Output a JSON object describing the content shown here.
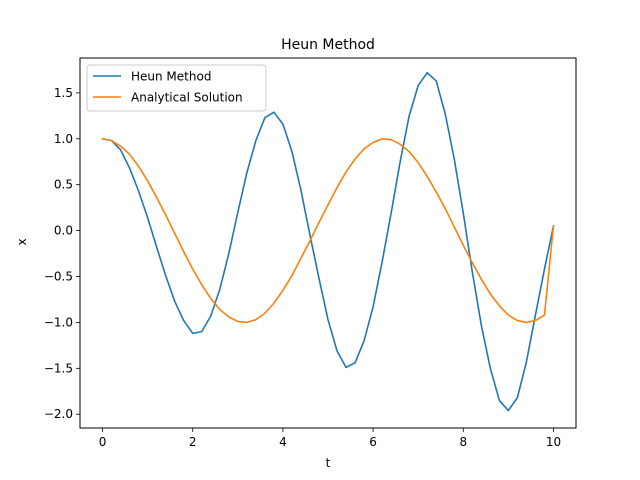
{
  "chart_data": {
    "type": "line",
    "title": "Heun Method",
    "xlabel": "t",
    "ylabel": "x",
    "xlim": [
      -0.5,
      10.5
    ],
    "ylim": [
      -2.15,
      1.88
    ],
    "xticks": [
      0,
      2,
      4,
      6,
      8,
      10
    ],
    "xtick_labels": [
      "0",
      "2",
      "4",
      "6",
      "8",
      "10"
    ],
    "yticks": [
      -2.0,
      -1.5,
      -1.0,
      -0.5,
      0.0,
      0.5,
      1.0,
      1.5
    ],
    "ytick_labels": [
      "−2.0",
      "−1.5",
      "−1.0",
      "−0.5",
      "0.0",
      "0.5",
      "1.0",
      "1.5"
    ],
    "grid": false,
    "legend_position": "top-left",
    "series": [
      {
        "name": "Heun Method",
        "color": "#1f77b4",
        "x": [
          0,
          0.2,
          0.4,
          0.6,
          0.8,
          1.0,
          1.2,
          1.4,
          1.6,
          1.8,
          2.0,
          2.2,
          2.4,
          2.6,
          2.8,
          3.0,
          3.2,
          3.4,
          3.6,
          3.8,
          4.0,
          4.2,
          4.4,
          4.6,
          4.8,
          5.0,
          5.2,
          5.4,
          5.6,
          5.8,
          6.0,
          6.2,
          6.4,
          6.6,
          6.8,
          7.0,
          7.2,
          7.4,
          7.6,
          7.8,
          8.0,
          8.2,
          8.4,
          8.6,
          8.8,
          9.0,
          9.2,
          9.4,
          9.6,
          9.8,
          10.0
        ],
        "y": [
          1.0,
          0.98,
          0.88,
          0.68,
          0.43,
          0.14,
          -0.18,
          -0.49,
          -0.77,
          -0.98,
          -1.12,
          -1.1,
          -0.93,
          -0.64,
          -0.25,
          0.2,
          0.63,
          0.98,
          1.23,
          1.29,
          1.16,
          0.86,
          0.44,
          -0.05,
          -0.52,
          -0.97,
          -1.31,
          -1.49,
          -1.44,
          -1.2,
          -0.83,
          -0.34,
          0.19,
          0.75,
          1.25,
          1.58,
          1.72,
          1.63,
          1.27,
          0.78,
          0.19,
          -0.45,
          -1.03,
          -1.5,
          -1.85,
          -1.96,
          -1.82,
          -1.43,
          -0.92,
          -0.42,
          0.05
        ]
      },
      {
        "name": "Analytical Solution",
        "color": "#ff7f0e",
        "x": [
          0,
          0.2,
          0.4,
          0.6,
          0.8,
          1.0,
          1.2,
          1.4,
          1.6,
          1.8,
          2.0,
          2.2,
          2.4,
          2.6,
          2.8,
          3.0,
          3.2,
          3.4,
          3.6,
          3.8,
          4.0,
          4.2,
          4.4,
          4.6,
          4.8,
          5.0,
          5.2,
          5.4,
          5.6,
          5.8,
          6.0,
          6.2,
          6.4,
          6.6,
          6.8,
          7.0,
          7.2,
          7.4,
          7.6,
          7.8,
          8.0,
          8.2,
          8.4,
          8.6,
          8.8,
          9.0,
          9.2,
          9.4,
          9.6,
          9.8,
          10.0
        ],
        "y": [
          1.0,
          0.98,
          0.92,
          0.83,
          0.7,
          0.54,
          0.36,
          0.17,
          -0.03,
          -0.23,
          -0.42,
          -0.59,
          -0.74,
          -0.86,
          -0.94,
          -0.99,
          -1.0,
          -0.97,
          -0.9,
          -0.79,
          -0.65,
          -0.49,
          -0.3,
          -0.11,
          0.09,
          0.28,
          0.47,
          0.64,
          0.78,
          0.89,
          0.96,
          1.0,
          0.99,
          0.94,
          0.86,
          0.74,
          0.59,
          0.42,
          0.24,
          0.04,
          -0.16,
          -0.35,
          -0.53,
          -0.69,
          -0.82,
          -0.92,
          -0.98,
          -1.0,
          -0.98,
          -0.92,
          0.05
        ]
      }
    ]
  }
}
